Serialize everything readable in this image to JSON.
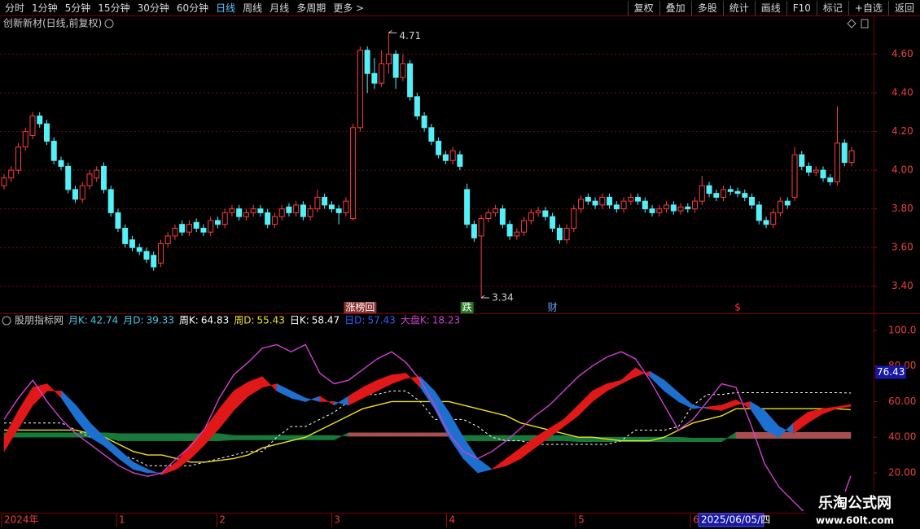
{
  "toolbar": {
    "left": [
      "分时",
      "1分钟",
      "5分钟",
      "15分钟",
      "30分钟",
      "60分钟",
      "日线",
      "周线",
      "月线",
      "多周期",
      "更多 >"
    ],
    "right": [
      "复权",
      "叠加",
      "多股",
      "统计",
      "画线",
      "F10",
      "标记",
      "+自选",
      "返回"
    ],
    "active": "日线"
  },
  "stock_title": "创新新材(日线,前复权)",
  "watermark": {
    "line1": "乐淘公式网",
    "line2": "www.60lt.com"
  },
  "chart_data": [
    {
      "type": "candlestick",
      "up_color": "#ff3c3c",
      "down_color": "#54f0f8",
      "grid": true,
      "ylim": [
        3.26,
        4.72
      ],
      "yticks": [
        {
          "value": 3.4,
          "label": "3.40"
        },
        {
          "value": 3.6,
          "label": "3.60"
        },
        {
          "value": 3.8,
          "label": "3.80"
        },
        {
          "value": 4.0,
          "label": "4.00"
        },
        {
          "value": 4.2,
          "label": "4.20"
        },
        {
          "value": 4.4,
          "label": "4.40"
        },
        {
          "value": 4.6,
          "label": "4.60"
        }
      ],
      "opens": [
        3.92,
        3.96,
        4.0,
        4.12,
        4.18,
        4.28,
        4.24,
        4.15,
        4.05,
        4.02,
        3.9,
        3.85,
        3.92,
        3.96,
        4.02,
        3.9,
        3.78,
        3.7,
        3.64,
        3.6,
        3.58,
        3.56,
        3.52,
        3.62,
        3.66,
        3.72,
        3.68,
        3.73,
        3.7,
        3.68,
        3.74,
        3.72,
        3.78,
        3.8,
        3.76,
        3.78,
        3.8,
        3.78,
        3.72,
        3.76,
        3.81,
        3.78,
        3.82,
        3.76,
        3.8,
        3.86,
        3.82,
        3.8,
        3.78,
        3.75,
        4.22,
        4.62,
        4.5,
        4.45,
        4.55,
        4.6,
        4.48,
        4.55,
        4.38,
        4.28,
        4.22,
        4.15,
        4.08,
        4.05,
        4.08,
        3.9,
        3.72,
        3.66,
        3.75,
        3.78,
        3.8,
        3.72,
        3.66,
        3.68,
        3.74,
        3.78,
        3.79,
        3.76,
        3.7,
        3.64,
        3.7,
        3.8,
        3.86,
        3.84,
        3.82,
        3.86,
        3.82,
        3.8,
        3.84,
        3.86,
        3.84,
        3.8,
        3.78,
        3.8,
        3.82,
        3.79,
        3.81,
        3.8,
        3.84,
        3.92,
        3.88,
        3.86,
        3.9,
        3.89,
        3.88,
        3.86,
        3.82,
        3.74,
        3.72,
        3.78,
        3.84,
        3.86,
        4.08,
        4.02,
        3.99,
        4.0,
        3.96,
        3.94,
        4.14,
        4.04
      ],
      "highs": [
        3.98,
        4.02,
        4.14,
        4.22,
        4.3,
        4.3,
        4.26,
        4.17,
        4.07,
        4.04,
        3.92,
        3.94,
        4.0,
        4.02,
        4.04,
        3.92,
        3.8,
        3.72,
        3.66,
        3.62,
        3.6,
        3.58,
        3.64,
        3.68,
        3.72,
        3.74,
        3.74,
        3.75,
        3.72,
        3.76,
        3.76,
        3.8,
        3.82,
        3.82,
        3.8,
        3.82,
        3.82,
        3.8,
        3.78,
        3.82,
        3.83,
        3.84,
        3.84,
        3.82,
        3.9,
        3.88,
        3.84,
        3.82,
        3.86,
        4.24,
        4.64,
        4.64,
        4.58,
        4.62,
        4.71,
        4.62,
        4.6,
        4.57,
        4.4,
        4.3,
        4.24,
        4.17,
        4.1,
        4.12,
        4.1,
        3.93,
        3.74,
        3.77,
        3.8,
        3.82,
        3.82,
        3.74,
        3.7,
        3.76,
        3.8,
        3.81,
        3.81,
        3.78,
        3.72,
        3.72,
        3.82,
        3.87,
        3.88,
        3.86,
        3.88,
        3.88,
        3.84,
        3.86,
        3.88,
        3.88,
        3.86,
        3.82,
        3.82,
        3.84,
        3.84,
        3.83,
        3.83,
        3.86,
        3.97,
        3.94,
        3.9,
        3.92,
        3.92,
        3.91,
        3.9,
        3.88,
        3.84,
        3.76,
        3.8,
        3.86,
        3.86,
        4.12,
        4.1,
        4.04,
        4.02,
        4.02,
        3.98,
        4.33,
        4.16,
        4.12
      ],
      "lows": [
        3.9,
        3.94,
        3.98,
        4.1,
        4.16,
        4.22,
        4.13,
        4.03,
        4.0,
        3.88,
        3.83,
        3.83,
        3.9,
        3.94,
        3.88,
        3.76,
        3.68,
        3.6,
        3.58,
        3.56,
        3.52,
        3.48,
        3.5,
        3.6,
        3.64,
        3.66,
        3.66,
        3.68,
        3.66,
        3.66,
        3.7,
        3.7,
        3.76,
        3.74,
        3.74,
        3.76,
        3.76,
        3.7,
        3.7,
        3.74,
        3.76,
        3.76,
        3.74,
        3.74,
        3.78,
        3.8,
        3.78,
        3.72,
        3.76,
        3.74,
        4.2,
        4.4,
        4.42,
        4.43,
        4.5,
        4.42,
        4.46,
        4.36,
        4.26,
        4.2,
        4.13,
        4.06,
        4.03,
        4.03,
        4.0,
        3.7,
        3.63,
        3.34,
        3.73,
        3.76,
        3.7,
        3.64,
        3.64,
        3.66,
        3.72,
        3.76,
        3.74,
        3.68,
        3.62,
        3.62,
        3.68,
        3.78,
        3.82,
        3.8,
        3.8,
        3.8,
        3.78,
        3.78,
        3.82,
        3.82,
        3.78,
        3.76,
        3.76,
        3.78,
        3.77,
        3.77,
        3.78,
        3.78,
        3.82,
        3.86,
        3.84,
        3.84,
        3.87,
        3.86,
        3.84,
        3.8,
        3.72,
        3.7,
        3.7,
        3.76,
        3.8,
        3.84,
        4.0,
        3.97,
        3.97,
        3.94,
        3.92,
        3.92,
        4.02,
        4.02
      ],
      "closes": [
        3.96,
        4.0,
        4.12,
        4.2,
        4.28,
        4.24,
        4.15,
        4.05,
        4.02,
        3.9,
        3.85,
        3.92,
        3.98,
        4.0,
        3.9,
        3.78,
        3.7,
        3.62,
        3.6,
        3.58,
        3.54,
        3.5,
        3.62,
        3.66,
        3.7,
        3.68,
        3.72,
        3.7,
        3.68,
        3.74,
        3.72,
        3.78,
        3.8,
        3.76,
        3.78,
        3.8,
        3.78,
        3.72,
        3.76,
        3.8,
        3.78,
        3.82,
        3.76,
        3.8,
        3.86,
        3.82,
        3.8,
        3.78,
        3.84,
        4.22,
        4.62,
        4.5,
        4.45,
        4.55,
        4.6,
        4.48,
        4.55,
        4.38,
        4.28,
        4.22,
        4.15,
        4.08,
        4.05,
        4.1,
        4.02,
        3.72,
        3.65,
        3.75,
        3.78,
        3.8,
        3.72,
        3.66,
        3.68,
        3.74,
        3.78,
        3.79,
        3.76,
        3.7,
        3.64,
        3.7,
        3.8,
        3.85,
        3.84,
        3.82,
        3.86,
        3.82,
        3.8,
        3.84,
        3.86,
        3.84,
        3.8,
        3.78,
        3.8,
        3.82,
        3.79,
        3.81,
        3.8,
        3.84,
        3.92,
        3.88,
        3.86,
        3.9,
        3.89,
        3.88,
        3.86,
        3.82,
        3.74,
        3.72,
        3.78,
        3.84,
        3.82,
        4.08,
        4.02,
        3.99,
        4.0,
        3.96,
        3.94,
        4.14,
        4.04,
        4.1
      ],
      "event_labels": [
        null,
        null,
        null,
        null,
        null,
        null,
        null,
        null,
        null,
        null,
        null,
        null,
        null,
        null,
        null,
        null,
        null,
        null,
        null,
        null,
        null,
        null,
        null,
        null,
        null,
        null,
        null,
        null,
        null,
        null,
        null,
        null,
        null,
        null,
        null,
        null,
        null,
        null,
        null,
        null,
        null,
        null,
        null,
        null,
        null,
        null,
        null,
        null,
        null,
        null,
        "涨榜回",
        null,
        null,
        null,
        null,
        null,
        null,
        null,
        null,
        null,
        null,
        null,
        null,
        null,
        null,
        "跌",
        null,
        null,
        null,
        null,
        null,
        null,
        null,
        null,
        null,
        null,
        null,
        "财",
        null,
        null,
        null,
        null,
        null,
        null,
        null,
        null,
        null,
        null,
        null,
        null,
        null,
        null,
        null,
        null,
        null,
        null,
        null,
        null,
        null,
        null,
        null,
        null,
        null,
        "$",
        null,
        null,
        null,
        null,
        null,
        null,
        null,
        null,
        null,
        null,
        null,
        null,
        null,
        null,
        null,
        null
      ]
    },
    {
      "type": "kd-bands",
      "title": "股朋指标网",
      "ylim": [
        -1.5,
        108.2
      ],
      "yticks": [
        {
          "value": 20,
          "label": "20.00"
        },
        {
          "value": 40,
          "label": "40.00"
        },
        {
          "value": 60,
          "label": "60.00"
        },
        {
          "value": 80,
          "label": "80.00"
        },
        {
          "value": 100,
          "label": "100.0"
        }
      ],
      "cursor_value": 76.43,
      "cursor_date": "2025/06/05/四",
      "categories": [
        "2024年",
        null,
        null,
        null,
        null,
        null,
        null,
        null,
        "1",
        null,
        null,
        null,
        null,
        null,
        null,
        "2",
        null,
        null,
        null,
        null,
        null,
        null,
        null,
        "3",
        null,
        null,
        null,
        null,
        null,
        null,
        null,
        "4",
        null,
        null,
        null,
        null,
        null,
        null,
        null,
        null,
        "5",
        null,
        null,
        null,
        null,
        null,
        null,
        null,
        "6",
        null,
        null,
        null,
        null,
        null,
        null,
        null,
        null,
        null,
        null,
        null
      ],
      "series": [
        {
          "name": "月K:",
          "color": "#48c8e8",
          "style": "band",
          "band_colors": {
            "up": "#a85050",
            "down": "#177a3a"
          },
          "values": [
            40,
            40,
            40,
            40,
            40,
            40,
            40,
            40,
            38,
            38,
            38,
            38,
            38,
            38,
            38,
            38,
            38.5,
            38.5,
            38.5,
            38.5,
            38.5,
            38.5,
            38.5,
            38.5,
            42.5,
            42.5,
            42.5,
            42.5,
            42.5,
            42.5,
            42.5,
            42.5,
            38,
            38,
            38,
            38,
            38,
            38,
            38,
            38,
            37.5,
            37.5,
            37.5,
            37.5,
            37.5,
            37.5,
            37.5,
            37.5,
            37.5,
            37.5,
            37.5,
            42.74,
            42.74,
            42.74,
            42.74,
            42.74,
            42.74,
            42.74,
            42.74,
            42.74
          ]
        },
        {
          "name": "月D:",
          "color": "#48c8e8",
          "style": "band",
          "values": [
            42.5,
            42.5,
            42.5,
            42.5,
            42.5,
            42.5,
            42.5,
            42.5,
            42,
            42,
            42,
            42,
            42,
            42,
            42,
            42,
            41,
            41,
            41,
            41,
            41,
            41,
            41,
            41,
            40.5,
            40.5,
            40.5,
            40.5,
            40.5,
            40.5,
            40.5,
            40.5,
            41,
            41,
            41,
            41,
            41,
            41,
            41,
            41,
            40,
            40,
            40,
            40,
            40,
            40,
            40,
            40,
            39.5,
            39.5,
            39.5,
            39.33,
            39.33,
            39.33,
            39.33,
            39.33,
            39.33,
            39.33,
            39.33,
            39.33
          ]
        },
        {
          "name": "周K:",
          "color": "#ffffff",
          "style": "dashed",
          "values": [
            48,
            48,
            48,
            48,
            48,
            44,
            40,
            36,
            30,
            28,
            24,
            24,
            24,
            24,
            26,
            28,
            30,
            32,
            32,
            40,
            46,
            46,
            50,
            54,
            60,
            64,
            64,
            66,
            66,
            60,
            50,
            50,
            50,
            46,
            40,
            38,
            38,
            36,
            36,
            36,
            36,
            36,
            36,
            38,
            44,
            44,
            44,
            46,
            58,
            64,
            64,
            65,
            65,
            65,
            65,
            65,
            65,
            65,
            65,
            64.83
          ]
        },
        {
          "name": "周D:",
          "color": "#f0e020",
          "style": "line",
          "values": [
            44,
            44,
            44,
            44,
            44,
            44,
            42,
            40,
            36,
            32,
            30,
            30,
            28,
            26,
            26,
            27,
            28,
            30,
            34,
            36,
            38,
            40,
            44,
            48,
            52,
            56,
            58,
            60,
            60,
            60,
            60,
            60,
            58,
            56,
            54,
            52,
            48,
            46,
            44,
            42,
            40,
            40,
            39,
            38,
            38,
            38,
            40,
            44,
            48,
            50,
            52,
            56,
            56,
            56,
            56,
            56,
            56,
            56,
            56,
            55.43
          ]
        },
        {
          "name": "日K:",
          "color": "#ffffff",
          "style": "band",
          "band_colors": {
            "up": "#e01818",
            "down": "#1e70d0"
          },
          "values": [
            40,
            55,
            68,
            70,
            62,
            50,
            40,
            35,
            28,
            22,
            20,
            20,
            26,
            36,
            45,
            56,
            66,
            71,
            74,
            66,
            62,
            60,
            63,
            58,
            63,
            68,
            72,
            75,
            76,
            68,
            56,
            40,
            28,
            20,
            22,
            28,
            34,
            40,
            45,
            50,
            58,
            66,
            70,
            72,
            79,
            74,
            66,
            60,
            56,
            57,
            58,
            61,
            56,
            44,
            40,
            48,
            54,
            56,
            57,
            58.47
          ]
        },
        {
          "name": "日D:",
          "color": "#2a62ff",
          "style": "band",
          "values": [
            32,
            45,
            58,
            66,
            66,
            58,
            48,
            40,
            33,
            26,
            22,
            19,
            22,
            28,
            36,
            45,
            55,
            63,
            68,
            70,
            66,
            62,
            60,
            60,
            58,
            62,
            66,
            70,
            73,
            74,
            66,
            54,
            40,
            28,
            22,
            24,
            28,
            34,
            40,
            46,
            52,
            60,
            66,
            70,
            74,
            77,
            72,
            65,
            58,
            56,
            55,
            58,
            60,
            55,
            46,
            42,
            48,
            53,
            56,
            57.43
          ]
        },
        {
          "name": "大盘K:",
          "color": "#d040d0",
          "style": "line",
          "values": [
            50,
            62,
            72,
            60,
            50,
            42,
            36,
            30,
            24,
            20,
            18,
            20,
            28,
            35,
            45,
            62,
            75,
            82,
            90,
            92,
            88,
            92,
            76,
            70,
            72,
            78,
            84,
            88,
            82,
            72,
            58,
            42,
            32,
            28,
            32,
            38,
            45,
            52,
            58,
            66,
            74,
            80,
            85,
            88,
            84,
            72,
            58,
            44,
            50,
            60,
            70,
            68,
            48,
            25,
            12,
            4,
            -4,
            -8,
            -4,
            18.23
          ]
        }
      ]
    }
  ]
}
